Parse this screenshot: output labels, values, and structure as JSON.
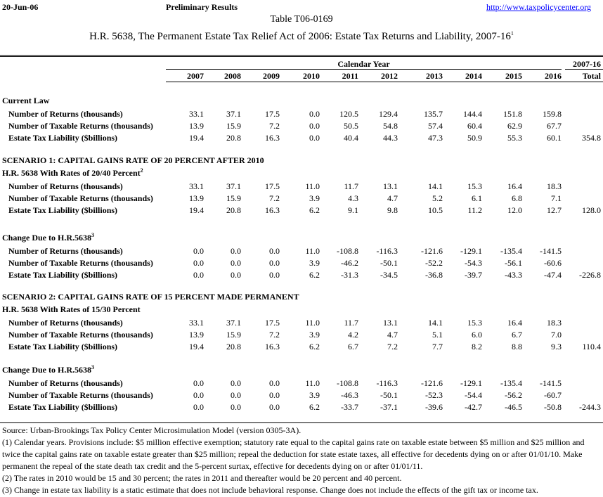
{
  "header": {
    "date": "20-Jun-06",
    "status": "Preliminary Results",
    "url": "http://www.taxpolicycenter.org",
    "table_id": "Table T06-0169",
    "title": "H.R. 5638, The Permanent Estate Tax Relief Act of 2006: Estate Tax Returns and Liability, 2007-16",
    "title_sup": "1"
  },
  "columns": {
    "group": "Calendar Year",
    "total_group": "2007-16",
    "years": [
      "2007",
      "2008",
      "2009",
      "2010",
      "2011",
      "2012",
      "2013",
      "2014",
      "2015",
      "2016"
    ],
    "total": "Total"
  },
  "blocks": [
    {
      "heading": "Current Law",
      "rows": [
        {
          "label": "Number of Returns (thousands)",
          "values": [
            "33.1",
            "37.1",
            "17.5",
            "0.0",
            "120.5",
            "129.4",
            "135.7",
            "144.4",
            "151.8",
            "159.8"
          ]
        },
        {
          "label": "Number of Taxable Returns (thousands)",
          "values": [
            "13.9",
            "15.9",
            "7.2",
            "0.0",
            "50.5",
            "54.8",
            "57.4",
            "60.4",
            "62.9",
            "67.7"
          ]
        },
        {
          "label": "Estate Tax Liability ($billions)",
          "values": [
            "19.4",
            "20.8",
            "16.3",
            "0.0",
            "40.4",
            "44.3",
            "47.3",
            "50.9",
            "55.3",
            "60.1"
          ],
          "total": "354.8"
        }
      ]
    },
    {
      "heading": "SCENARIO 1: CAPITAL GAINS RATE OF 20 PERCENT AFTER 2010",
      "rows": []
    },
    {
      "heading": "H.R. 5638 With Rates of 20/40 Percent",
      "sup": "2",
      "rows": [
        {
          "label": "Number of Returns (thousands)",
          "values": [
            "33.1",
            "37.1",
            "17.5",
            "11.0",
            "11.7",
            "13.1",
            "14.1",
            "15.3",
            "16.4",
            "18.3"
          ]
        },
        {
          "label": "Number of Taxable Returns (thousands)",
          "values": [
            "13.9",
            "15.9",
            "7.2",
            "3.9",
            "4.3",
            "4.7",
            "5.2",
            "6.1",
            "6.8",
            "7.1"
          ]
        },
        {
          "label": "Estate Tax Liability ($billions)",
          "values": [
            "19.4",
            "20.8",
            "16.3",
            "6.2",
            "9.1",
            "9.8",
            "10.5",
            "11.2",
            "12.0",
            "12.7"
          ],
          "total": "128.0"
        }
      ]
    },
    {
      "heading": "Change Due to H.R.5638",
      "sup": "3",
      "rows": [
        {
          "label": "Number of Returns (thousands)",
          "values": [
            "0.0",
            "0.0",
            "0.0",
            "11.0",
            "-108.8",
            "-116.3",
            "-121.6",
            "-129.1",
            "-135.4",
            "-141.5"
          ]
        },
        {
          "label": "Number of Taxable Returns (thousands)",
          "values": [
            "0.0",
            "0.0",
            "0.0",
            "3.9",
            "-46.2",
            "-50.1",
            "-52.2",
            "-54.3",
            "-56.1",
            "-60.6"
          ]
        },
        {
          "label": "Estate Tax Liability ($billions)",
          "values": [
            "0.0",
            "0.0",
            "0.0",
            "6.2",
            "-31.3",
            "-34.5",
            "-36.8",
            "-39.7",
            "-43.3",
            "-47.4"
          ],
          "total": "-226.8"
        }
      ]
    },
    {
      "heading": "SCENARIO 2: CAPITAL GAINS RATE OF 15 PERCENT MADE PERMANENT",
      "rows": []
    },
    {
      "heading": "H.R. 5638 With Rates of 15/30 Percent",
      "rows": [
        {
          "label": "Number of Returns (thousands)",
          "values": [
            "33.1",
            "37.1",
            "17.5",
            "11.0",
            "11.7",
            "13.1",
            "14.1",
            "15.3",
            "16.4",
            "18.3"
          ]
        },
        {
          "label": "Number of Taxable Returns (thousands)",
          "values": [
            "13.9",
            "15.9",
            "7.2",
            "3.9",
            "4.2",
            "4.7",
            "5.1",
            "6.0",
            "6.7",
            "7.0"
          ]
        },
        {
          "label": "Estate Tax Liability ($billions)",
          "values": [
            "19.4",
            "20.8",
            "16.3",
            "6.2",
            "6.7",
            "7.2",
            "7.7",
            "8.2",
            "8.8",
            "9.3"
          ],
          "total": "110.4"
        }
      ]
    },
    {
      "heading": "Change Due to H.R.5638",
      "sup": "3",
      "rows": [
        {
          "label": "Number of Returns (thousands)",
          "values": [
            "0.0",
            "0.0",
            "0.0",
            "11.0",
            "-108.8",
            "-116.3",
            "-121.6",
            "-129.1",
            "-135.4",
            "-141.5"
          ]
        },
        {
          "label": "Number of Taxable Returns (thousands)",
          "values": [
            "0.0",
            "0.0",
            "0.0",
            "3.9",
            "-46.3",
            "-50.1",
            "-52.3",
            "-54.4",
            "-56.2",
            "-60.7"
          ]
        },
        {
          "label": "Estate Tax Liability ($billions)",
          "values": [
            "0.0",
            "0.0",
            "0.0",
            "6.2",
            "-33.7",
            "-37.1",
            "-39.6",
            "-42.7",
            "-46.5",
            "-50.8"
          ],
          "total": "-244.3"
        }
      ]
    }
  ],
  "footer": {
    "source": "Source: Urban-Brookings Tax Policy Center Microsimulation Model (version 0305-3A).",
    "notes": [
      "(1) Calendar years. Provisions include: $5 million effective exemption;  statutory rate equal to the capital gains rate on taxable estate between $5 million and $25 million and twice the capital gains rate on taxable estate greater than $25 million; repeal the deduction for state estate taxes, all effective for decedents dying on or after 01/01/10.  Make permanent the repeal of the state death tax credit and the 5-percent surtax, effective for decedents dying on or after 01/01/11.",
      "(2) The rates in 2010 would be 15 and 30 percent; the rates in 2011 and thereafter would be 20 percent and 40 percent.",
      "(3) Change in estate tax liability is a static estimate that does not include behavioral response.  Change does not include the effects of the gift tax or income tax."
    ]
  }
}
